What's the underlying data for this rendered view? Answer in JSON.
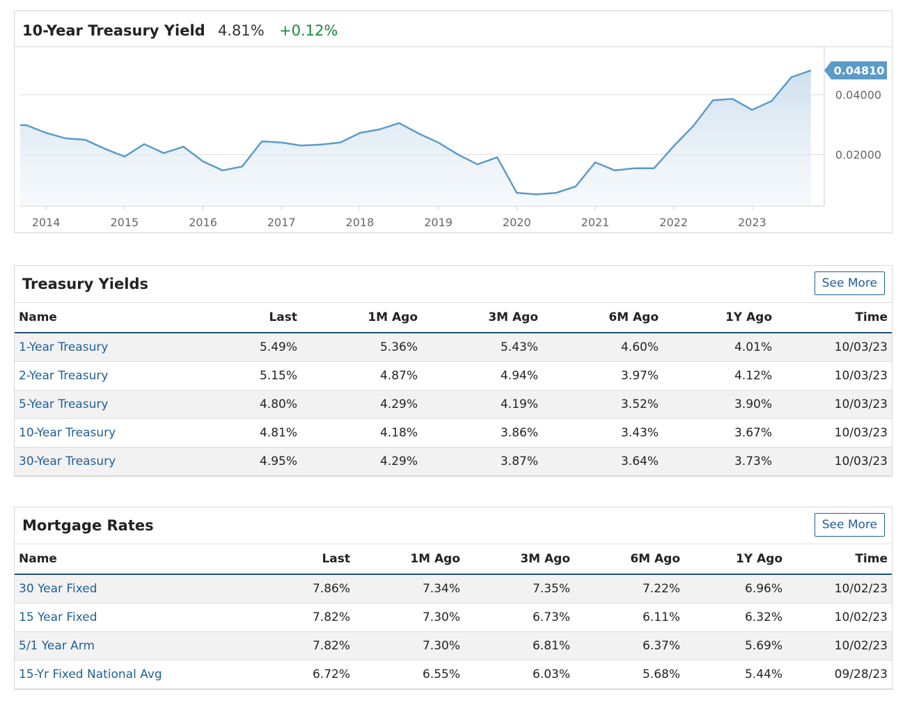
{
  "chart_data": {
    "type": "line",
    "title": "10-Year Treasury Yield",
    "last": "4.81%",
    "change": "+0.12%",
    "x": [
      2013.75,
      2014.0,
      2014.25,
      2014.5,
      2014.75,
      2015.0,
      2015.25,
      2015.5,
      2015.75,
      2016.0,
      2016.25,
      2016.5,
      2016.75,
      2017.0,
      2017.25,
      2017.5,
      2017.75,
      2018.0,
      2018.25,
      2018.5,
      2018.75,
      2019.0,
      2019.25,
      2019.5,
      2019.75,
      2020.0,
      2020.25,
      2020.5,
      2020.75,
      2021.0,
      2021.25,
      2021.5,
      2021.75,
      2022.0,
      2022.25,
      2022.5,
      2022.75,
      2023.0,
      2023.25,
      2023.5,
      2023.75
    ],
    "series": [
      {
        "name": "10-Year Treasury Yield",
        "color": "#5b9bc9",
        "values": [
          0.0298,
          0.0272,
          0.0254,
          0.0249,
          0.0219,
          0.0193,
          0.0235,
          0.0205,
          0.0226,
          0.0177,
          0.0147,
          0.016,
          0.0244,
          0.024,
          0.023,
          0.0233,
          0.024,
          0.0272,
          0.0284,
          0.0305,
          0.027,
          0.024,
          0.02,
          0.0167,
          0.0191,
          0.0072,
          0.0067,
          0.0072,
          0.0093,
          0.0174,
          0.0147,
          0.0154,
          0.0154,
          0.0228,
          0.0295,
          0.0381,
          0.0386,
          0.0349,
          0.0379,
          0.0458,
          0.0481
        ]
      }
    ],
    "xlim": [
      2013.67,
      2023.92
    ],
    "xticks": [
      2014,
      2015,
      2016,
      2017,
      2018,
      2019,
      2020,
      2021,
      2022,
      2023
    ],
    "ylim": [
      0.0028,
      0.0558
    ],
    "yticks": [
      {
        "value": 0.02,
        "label": "0.02000"
      },
      {
        "value": 0.04,
        "label": "0.04000"
      }
    ],
    "annotations": [
      {
        "value": 0.0481,
        "label": "0.04810"
      }
    ],
    "grid": true
  },
  "treasury": {
    "title": "Treasury Yields",
    "button": "See More",
    "columns": [
      "Name",
      "Last",
      "1M Ago",
      "3M Ago",
      "6M Ago",
      "1Y Ago",
      "Time"
    ],
    "rows": [
      [
        "1-Year Treasury",
        "5.49%",
        "5.36%",
        "5.43%",
        "4.60%",
        "4.01%",
        "10/03/23"
      ],
      [
        "2-Year Treasury",
        "5.15%",
        "4.87%",
        "4.94%",
        "3.97%",
        "4.12%",
        "10/03/23"
      ],
      [
        "5-Year Treasury",
        "4.80%",
        "4.29%",
        "4.19%",
        "3.52%",
        "3.90%",
        "10/03/23"
      ],
      [
        "10-Year Treasury",
        "4.81%",
        "4.18%",
        "3.86%",
        "3.43%",
        "3.67%",
        "10/03/23"
      ],
      [
        "30-Year Treasury",
        "4.95%",
        "4.29%",
        "3.87%",
        "3.64%",
        "3.73%",
        "10/03/23"
      ]
    ]
  },
  "mortgage": {
    "title": "Mortgage Rates",
    "button": "See More",
    "columns": [
      "Name",
      "Last",
      "1M Ago",
      "3M Ago",
      "6M Ago",
      "1Y Ago",
      "Time"
    ],
    "rows": [
      [
        "30 Year Fixed",
        "7.86%",
        "7.34%",
        "7.35%",
        "7.22%",
        "6.96%",
        "10/02/23"
      ],
      [
        "15 Year Fixed",
        "7.82%",
        "7.30%",
        "6.73%",
        "6.11%",
        "6.32%",
        "10/02/23"
      ],
      [
        "5/1 Year Arm",
        "7.82%",
        "7.30%",
        "6.81%",
        "6.37%",
        "5.69%",
        "10/02/23"
      ],
      [
        "15-Yr Fixed National Avg",
        "6.72%",
        "6.55%",
        "6.03%",
        "5.68%",
        "5.44%",
        "09/28/23"
      ]
    ]
  }
}
